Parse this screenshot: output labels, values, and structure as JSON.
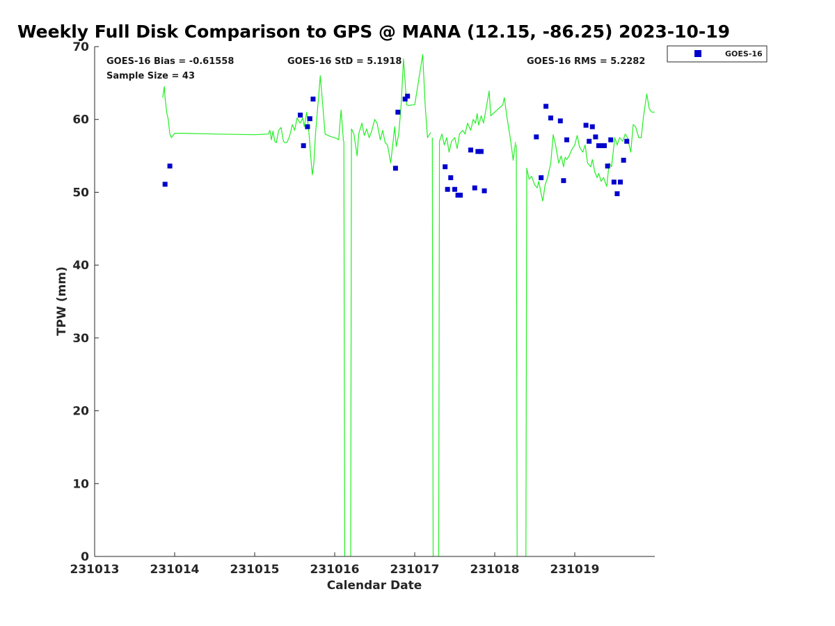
{
  "chart_data": {
    "type": "scatter",
    "title": "Weekly Full Disk Comparison to GPS @ MANA (12.15, -86.25) 2023-10-19",
    "xlabel": "Calendar Date",
    "ylabel": "TPW (mm)",
    "xlim": [
      0,
      7
    ],
    "ylim": [
      0,
      70
    ],
    "x_ticks": [
      {
        "value": 0,
        "label": "231013"
      },
      {
        "value": 1,
        "label": "231014"
      },
      {
        "value": 2,
        "label": "231015"
      },
      {
        "value": 3,
        "label": "231016"
      },
      {
        "value": 4,
        "label": "231017"
      },
      {
        "value": 5,
        "label": "231018"
      },
      {
        "value": 6,
        "label": "231019"
      }
    ],
    "y_ticks": [
      {
        "value": 0,
        "label": "0"
      },
      {
        "value": 10,
        "label": "10"
      },
      {
        "value": 20,
        "label": "20"
      },
      {
        "value": 30,
        "label": "30"
      },
      {
        "value": 40,
        "label": "40"
      },
      {
        "value": 50,
        "label": "50"
      },
      {
        "value": 60,
        "label": "60"
      },
      {
        "value": 70,
        "label": "70"
      }
    ],
    "stats": {
      "bias": "GOES-16 Bias = -0.61558",
      "sample_size": "Sample Size = 43",
      "std": "GOES-16 StD = 5.1918",
      "rms": "GOES-16 RMS = 5.2282"
    },
    "legend": {
      "label": "GOES-16",
      "placement": "top-right outside"
    },
    "colors": {
      "goes": "#0000cc",
      "gps_line": "#22ee22",
      "axis": "#262626"
    },
    "series": [
      {
        "name": "GOES-16",
        "type": "scatter",
        "x": [
          0.88,
          0.94,
          2.57,
          2.61,
          2.66,
          2.69,
          2.73,
          3.76,
          3.79,
          3.88,
          3.91,
          4.38,
          4.41,
          4.45,
          4.5,
          4.54,
          4.57,
          4.7,
          4.75,
          4.79,
          4.83,
          4.87,
          5.52,
          5.58,
          5.64,
          5.7,
          5.82,
          5.86,
          5.9,
          6.14,
          6.18,
          6.22,
          6.26,
          6.3,
          6.34,
          6.37,
          6.41,
          6.45,
          6.49,
          6.53,
          6.57,
          6.61,
          6.65
        ],
        "y": [
          51.1,
          53.6,
          60.6,
          56.4,
          59.0,
          60.1,
          62.8,
          53.3,
          61.0,
          62.8,
          63.2,
          53.5,
          50.4,
          52.0,
          50.4,
          49.6,
          49.6,
          55.8,
          50.6,
          55.6,
          55.6,
          50.2,
          57.6,
          52.0,
          61.8,
          60.2,
          59.8,
          51.6,
          57.2,
          59.2,
          57.0,
          59.0,
          57.6,
          56.4,
          56.4,
          56.4,
          53.6,
          57.2,
          51.4,
          49.8,
          51.4,
          54.4,
          57.0
        ]
      },
      {
        "name": "GPS",
        "type": "line",
        "segments": [
          {
            "x": [
              0.85,
              0.87,
              0.88,
              0.9,
              0.92,
              0.94,
              0.96,
              1.0,
              1.1,
              1.5,
              2.0,
              2.17,
              2.19,
              2.21,
              2.23,
              2.25,
              2.27,
              2.3,
              2.33,
              2.36,
              2.38,
              2.4,
              2.43,
              2.45,
              2.47,
              2.5,
              2.53,
              2.55,
              2.57,
              2.6,
              2.62,
              2.65,
              2.68,
              2.7,
              2.72,
              2.74,
              2.76,
              2.79,
              2.82,
              2.85,
              2.88,
              2.92,
              2.96,
              3.0,
              3.02,
              3.05,
              3.08,
              3.11
            ],
            "y": [
              63.0,
              64.5,
              63.0,
              61.0,
              60.0,
              58.0,
              57.5,
              58.1,
              58.1,
              58.0,
              57.9,
              58.0,
              58.5,
              57.2,
              58.4,
              57.0,
              56.8,
              58.5,
              58.9,
              57.0,
              56.8,
              56.8,
              57.5,
              58.3,
              59.3,
              58.5,
              60.2,
              59.8,
              59.5,
              60.2,
              59.0,
              61.0,
              58.0,
              55.0,
              52.4,
              54.0,
              58.0,
              62.0,
              66.0,
              62.0,
              58.0,
              57.8,
              57.6,
              57.5,
              57.4,
              57.2,
              61.3,
              57.0
            ]
          },
          {
            "x": [
              3.115,
              3.125
            ],
            "y": [
              57.0,
              0.0
            ]
          },
          {
            "x": [
              3.2,
              3.21,
              3.24,
              3.28,
              3.3,
              3.34,
              3.37,
              3.4,
              3.43,
              3.46,
              3.5,
              3.53,
              3.57,
              3.6,
              3.63,
              3.66,
              3.7,
              3.72,
              3.75,
              3.77,
              3.8,
              3.83,
              3.86,
              3.9,
              3.93,
              3.96,
              4.0,
              4.1,
              4.13,
              4.16,
              4.2
            ],
            "y": [
              0.0,
              58.7,
              58.0,
              55.0,
              58.0,
              59.5,
              57.8,
              58.7,
              57.5,
              58.3,
              60.0,
              59.5,
              57.2,
              58.5,
              56.8,
              56.5,
              54.0,
              56.0,
              59.0,
              56.3,
              58.0,
              62.0,
              68.3,
              62.0,
              61.9,
              62.0,
              62.0,
              68.9,
              62.0,
              57.5,
              58.2
            ]
          },
          {
            "x": [
              4.22,
              4.23
            ],
            "y": [
              57.5,
              0.0
            ]
          },
          {
            "x": [
              4.3,
              4.31,
              4.34,
              4.37,
              4.4,
              4.43,
              4.46,
              4.5,
              4.53,
              4.56,
              4.6,
              4.63,
              4.66,
              4.7,
              4.73,
              4.76,
              4.78,
              4.8,
              4.83,
              4.86,
              4.9,
              4.93,
              4.95,
              5.0,
              5.05,
              5.1,
              5.12,
              5.15,
              5.2,
              5.23,
              5.26
            ],
            "y": [
              0.0,
              57.0,
              58.0,
              56.5,
              57.5,
              55.5,
              57.0,
              57.5,
              56.0,
              58.0,
              58.5,
              58.0,
              59.5,
              58.5,
              60.0,
              59.5,
              60.8,
              59.2,
              60.5,
              59.5,
              62.0,
              63.9,
              60.5,
              61.0,
              61.5,
              62.0,
              63.0,
              60.5,
              57.0,
              54.4,
              56.9
            ]
          },
          {
            "x": [
              5.27,
              5.28
            ],
            "y": [
              56.5,
              0.0
            ]
          },
          {
            "x": [
              5.39,
              5.4,
              5.43,
              5.46,
              5.5,
              5.53,
              5.55,
              5.58,
              5.6,
              5.63,
              5.66,
              5.7,
              5.73,
              5.76,
              5.8,
              5.83,
              5.86,
              5.88,
              5.9,
              5.93,
              5.96,
              6.0,
              6.03,
              6.06,
              6.1,
              6.13,
              6.16,
              6.2,
              6.22,
              6.25,
              6.28,
              6.3,
              6.33,
              6.36,
              6.4,
              6.43,
              6.46,
              6.5,
              6.53,
              6.56,
              6.6,
              6.63,
              6.66,
              6.7,
              6.73,
              6.76,
              6.8,
              6.83,
              6.86,
              6.9,
              6.93,
              6.96,
              7.0
            ],
            "y": [
              0.0,
              53.3,
              51.8,
              52.2,
              51.0,
              50.6,
              51.5,
              49.8,
              48.8,
              51.0,
              52.0,
              54.0,
              57.9,
              56.5,
              54.0,
              55.0,
              53.5,
              54.8,
              54.5,
              55.0,
              55.8,
              56.5,
              57.8,
              56.2,
              55.5,
              56.5,
              54.0,
              53.5,
              54.5,
              52.8,
              52.0,
              52.6,
              51.5,
              52.0,
              50.8,
              54.0,
              53.5,
              57.5,
              56.5,
              57.5,
              57.0,
              58.0,
              57.5,
              55.5,
              59.3,
              59.0,
              57.5,
              57.5,
              60.5,
              63.5,
              61.5,
              61.0,
              61.0
            ]
          }
        ]
      }
    ]
  }
}
